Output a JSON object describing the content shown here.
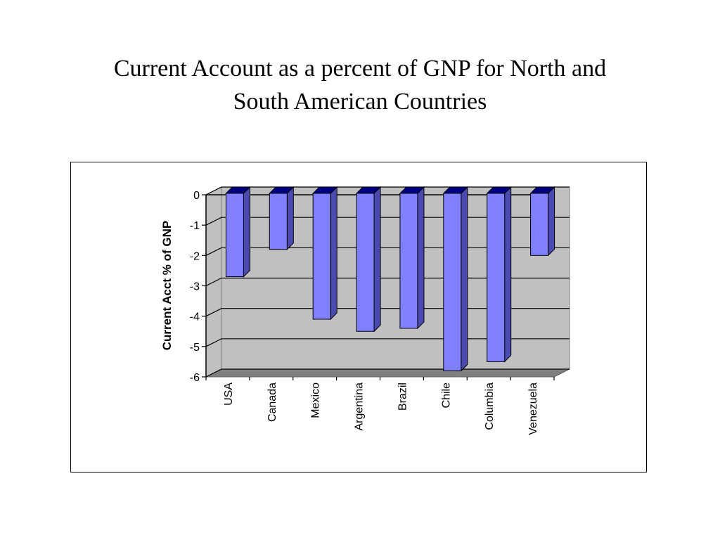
{
  "title": {
    "line1": "Current Account as a percent of GNP for North and",
    "line2": "South American Countries"
  },
  "colors": {
    "bar_front": "#8080ff",
    "bar_side": "#4a4ab0",
    "bar_top": "#000080",
    "back_wall": "#c0c0c0",
    "floor": "#808080"
  },
  "chart_data": {
    "type": "bar",
    "categories": [
      "USA",
      "Canada",
      "Mexico",
      "Argentina",
      "Brazil",
      "Chile",
      "Columbia",
      "Venezuela"
    ],
    "values": [
      -2.7,
      -1.8,
      -4.1,
      -4.5,
      -4.4,
      -5.8,
      -5.5,
      -2.0
    ],
    "ylabel": "Current Acct % of GNP",
    "xlabel": "",
    "ylim": [
      -6,
      0
    ],
    "yticks": [
      "0",
      "-1",
      "-2",
      "-3",
      "-4",
      "-5",
      "-6"
    ],
    "grid": true,
    "legend": "none",
    "style": "3d-column"
  }
}
